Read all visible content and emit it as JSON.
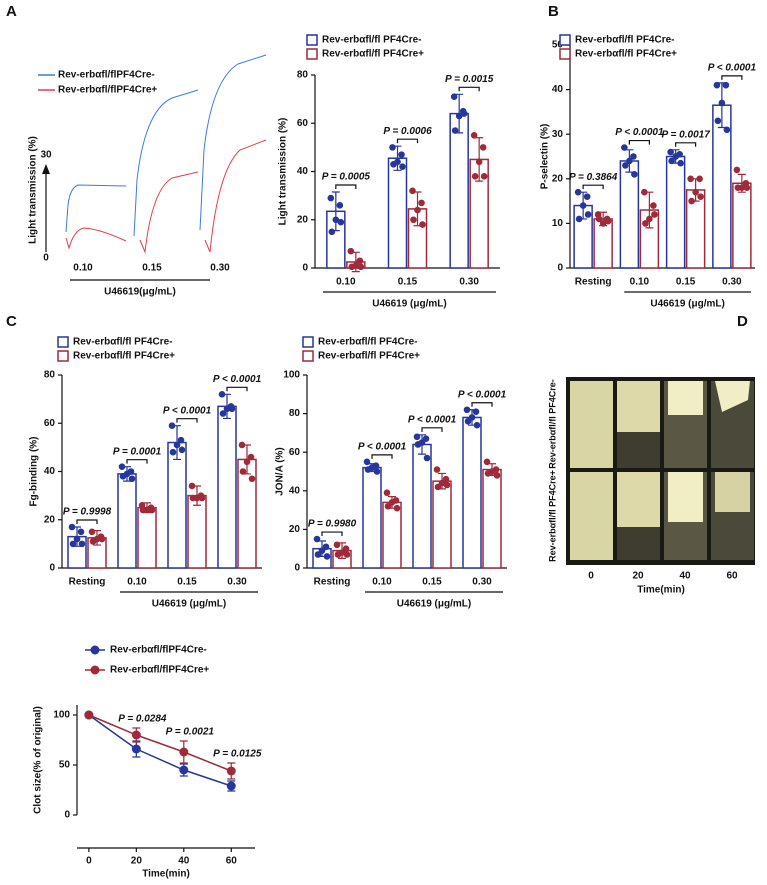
{
  "panels": [
    "A",
    "B",
    "C",
    "D"
  ],
  "aggregation_traces": {
    "legend": [
      "Rev-erbαfl/flPF4Cre-",
      "Rev-erbαfl/flPF4Cre+"
    ],
    "ylabel": "Light transmission  (%)",
    "y_top": 30,
    "y_bottom": 0,
    "categories": [
      "0.10",
      "0.15",
      "0.30"
    ],
    "xlabel": "U46619(μg/mL)"
  },
  "clot_images": {
    "rows": [
      "Rev-erbαfl/fl PF4Cre-",
      "Rev-erbαfl/fl PF4Cre+"
    ],
    "times": [
      0,
      20,
      40,
      60
    ],
    "xlabel": "Time(min)"
  },
  "chart_data": [
    {
      "type": "bar",
      "ylabel": "Light transmission (%)",
      "xlabel": "U46619 (μg/mL)",
      "categories": [
        "0.10",
        "0.15",
        "0.30"
      ],
      "ylim": [
        0,
        80
      ],
      "yticks": [
        0,
        20,
        40,
        60,
        80
      ],
      "series": [
        {
          "name": "Rev-erbαfl/fl PF4Cre-",
          "color": "#26369a",
          "values": [
            23.5,
            45.5,
            64
          ],
          "errors": [
            8,
            5,
            8
          ],
          "points": [
            [
              29,
              26,
              20,
              15,
              19
            ],
            [
              50,
              47,
              44,
              43,
              42
            ],
            [
              71,
              65,
              63,
              57,
              64
            ]
          ]
        },
        {
          "name": "Rev-erbαfl/fl PF4Cre+",
          "color": "#9e2a3a",
          "values": [
            2.5,
            24.5,
            45
          ],
          "errors": [
            4,
            7,
            9
          ],
          "points": [
            [
              7,
              3,
              1,
              0.5,
              0.5
            ],
            [
              32,
              27,
              24,
              20,
              18
            ],
            [
              55,
              50,
              44,
              38,
              38
            ]
          ]
        }
      ],
      "annotations": [
        "P = 0.0005",
        "P = 0.0006",
        "P = 0.0015"
      ]
    },
    {
      "type": "bar",
      "ylabel": "P-selectin (%)",
      "xlabel": "U46619 (μg/mL)",
      "categories": [
        "Resting",
        "0.10",
        "0.15",
        "0.30"
      ],
      "ylim": [
        0,
        50
      ],
      "yticks": [
        0,
        10,
        20,
        30,
        40,
        50
      ],
      "series": [
        {
          "name": "Rev-erbαfl/fl PF4Cre-",
          "color": "#26369a",
          "values": [
            14,
            24,
            25,
            36.5
          ],
          "errors": [
            3,
            2.5,
            1.5,
            5
          ],
          "points": [
            [
              17,
              16,
              14,
              11,
              12
            ],
            [
              27,
              25,
              24,
              23,
              21
            ],
            [
              26,
              25.5,
              25,
              24,
              23.5
            ],
            [
              41,
              41,
              37,
              33,
              31
            ]
          ]
        },
        {
          "name": "Rev-erbαfl/fl PF4Cre+",
          "color": "#9e2a3a",
          "values": [
            11,
            13,
            17.5,
            19
          ],
          "errors": [
            1.5,
            4,
            2.5,
            2
          ],
          "points": [
            [
              12,
              11,
              10,
              11,
              10.5
            ],
            [
              17,
              14,
              11,
              10,
              12
            ],
            [
              20,
              20,
              17,
              15,
              16
            ],
            [
              22,
              19,
              18,
              18,
              18
            ]
          ]
        }
      ],
      "annotations": [
        "P = 0.3864",
        "P < 0.0001",
        "P = 0.0017",
        "P < 0.0001"
      ]
    },
    {
      "type": "bar",
      "ylabel": "Fg-binding (%)",
      "xlabel": "U46619 (μg/mL)",
      "categories": [
        "Resting",
        "0.10",
        "0.15",
        "0.30"
      ],
      "ylim": [
        0,
        80
      ],
      "yticks": [
        0,
        20,
        40,
        60,
        80
      ],
      "series": [
        {
          "name": "Rev-erbαfl/fl PF4Cre-",
          "color": "#26369a",
          "values": [
            13,
            39,
            52,
            67
          ],
          "errors": [
            4,
            3,
            7,
            5
          ],
          "points": [
            [
              17,
              15,
              12,
              10,
              10
            ],
            [
              42,
              40,
              39,
              38,
              37
            ],
            [
              59,
              53,
              51,
              48,
              49
            ],
            [
              72,
              67,
              66,
              64,
              66
            ]
          ]
        },
        {
          "name": "Rev-erbαfl/fl PF4Cre+",
          "color": "#9e2a3a",
          "values": [
            12.5,
            25,
            30,
            45
          ],
          "errors": [
            3,
            2,
            4,
            6
          ],
          "points": [
            [
              15,
              13,
              12,
              11,
              12
            ],
            [
              26,
              25,
              24,
              24,
              24
            ],
            [
              34,
              30,
              29,
              29,
              29
            ],
            [
              51,
              46,
              44,
              40,
              37
            ]
          ]
        }
      ],
      "annotations": [
        "P = 0.9998",
        "P = 0.0001",
        "P < 0.0001",
        "P < 0.0001"
      ]
    },
    {
      "type": "bar",
      "ylabel": "JON/A (%)",
      "xlabel": "U46619 (μg/mL)",
      "categories": [
        "Resting",
        "0.10",
        "0.15",
        "0.30"
      ],
      "ylim": [
        0,
        100
      ],
      "yticks": [
        0,
        20,
        40,
        60,
        80,
        100
      ],
      "series": [
        {
          "name": "Rev-erbαfl/fl PF4Cre-",
          "color": "#26369a",
          "values": [
            10,
            52,
            64,
            78
          ],
          "errors": [
            4,
            2,
            5,
            4
          ],
          "points": [
            [
              15,
              11,
              9,
              7,
              6
            ],
            [
              55,
              53,
              52,
              51,
              50
            ],
            [
              68,
              67,
              65,
              64,
              57
            ],
            [
              82,
              81,
              78,
              76,
              74
            ]
          ]
        },
        {
          "name": "Rev-erbαfl/fl PF4Cre+",
          "color": "#9e2a3a",
          "values": [
            9,
            34,
            45,
            51
          ],
          "errors": [
            4,
            3,
            4,
            3
          ],
          "points": [
            [
              12,
              10,
              8,
              7,
              7
            ],
            [
              39,
              35,
              34,
              32,
              31
            ],
            [
              51,
              46,
              44,
              42,
              43
            ],
            [
              55,
              51,
              50,
              49,
              48
            ]
          ]
        }
      ],
      "annotations": [
        "P = 0.9980",
        "P < 0.0001",
        "P < 0.0001",
        "P < 0.0001"
      ]
    },
    {
      "type": "line",
      "ylabel": "Clot size(% of original)",
      "xlabel": "Time(min)",
      "x": [
        0,
        20,
        40,
        60
      ],
      "xlim": [
        -5,
        70
      ],
      "xticks": [
        0,
        20,
        40,
        60
      ],
      "ylim": [
        0,
        110
      ],
      "yticks": [
        0,
        50,
        100
      ],
      "series": [
        {
          "name": "Rev-erbαfl/flPF4Cre-",
          "color": "#26369a",
          "values": [
            100,
            66,
            45,
            29
          ],
          "errors": [
            0,
            8,
            6,
            5
          ]
        },
        {
          "name": "Rev-erbαfl/flPF4Cre+",
          "color": "#9e2a3a",
          "values": [
            100,
            80,
            63,
            44
          ],
          "errors": [
            0,
            7,
            11,
            8
          ]
        }
      ],
      "annotations": [
        "P = 0.0284",
        "P = 0.0021",
        "P = 0.0125"
      ]
    }
  ]
}
